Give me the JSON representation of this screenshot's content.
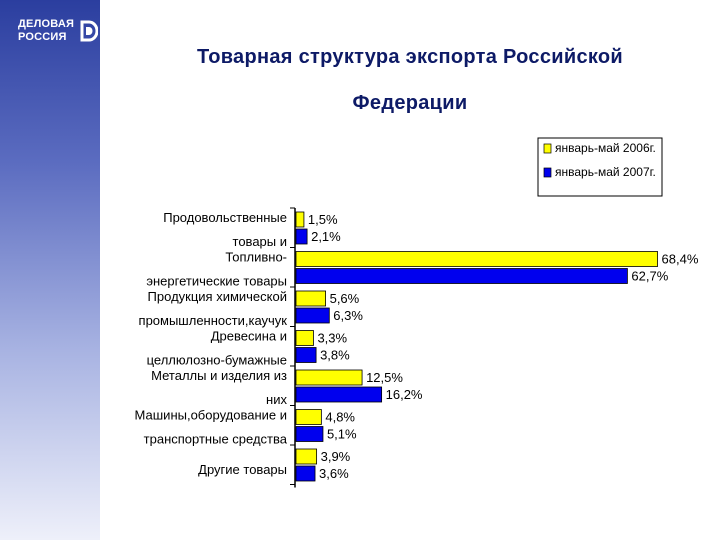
{
  "logo": {
    "line1": "ДЕЛОВАЯ",
    "line2": "РОССИЯ",
    "icon": "logo-d-mark"
  },
  "title": {
    "line1": "Товарная структура экспорта Российской",
    "line2": "Федерации"
  },
  "colors": {
    "series1": "#ffff00",
    "series2": "#0000ee",
    "title": "#0d1a66"
  },
  "chart_data": {
    "type": "bar",
    "orientation": "horizontal",
    "legend_position": "top-right",
    "grid": false,
    "xlim": [
      0,
      70
    ],
    "categories": [
      [
        "Продовольственные",
        "товары и"
      ],
      [
        "Топливно-",
        "энергетические товары"
      ],
      [
        "Продукция химической",
        "промышленности,каучук"
      ],
      [
        "Древесина и",
        "целлюлозно-бумажные"
      ],
      [
        "Металлы и изделия из",
        "них"
      ],
      [
        "Машины,оборудование и",
        "транспортные средства"
      ],
      [
        "Другие товары"
      ]
    ],
    "series": [
      {
        "name": "январь-май 2006г.",
        "values": [
          1.5,
          68.4,
          5.6,
          3.3,
          12.5,
          4.8,
          3.9
        ],
        "labels": [
          "1,5%",
          "68,4%",
          "5,6%",
          "3,3%",
          "12,5%",
          "4,8%",
          "3,9%"
        ]
      },
      {
        "name": "январь-май 2007г.",
        "values": [
          2.1,
          62.7,
          6.3,
          3.8,
          16.2,
          5.1,
          3.6
        ],
        "labels": [
          "2,1%",
          "62,7%",
          "6,3%",
          "3,8%",
          "16,2%",
          "5,1%",
          "3,6%"
        ]
      }
    ]
  }
}
